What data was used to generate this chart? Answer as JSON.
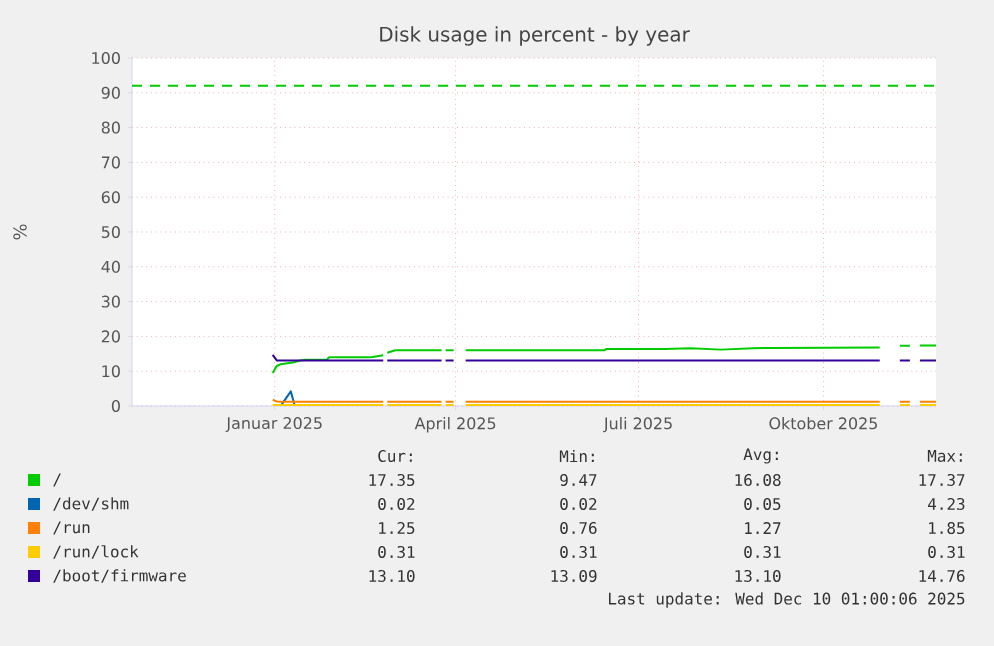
{
  "chart_data": {
    "type": "line",
    "title": "Disk usage in percent - by year",
    "ylabel": "%",
    "x": [
      "2024-12-31",
      "2025-01-02",
      "2025-01-04",
      "2025-01-09",
      "2025-01-11",
      "2025-01-13",
      "2025-01-16",
      "2025-01-27",
      "2025-01-28",
      "2025-02-18",
      "2025-02-24",
      "2025-02-25",
      "2025-02-26",
      "2025-03-02",
      "2025-03-25",
      "2025-03-26",
      "2025-03-27",
      "2025-03-31",
      "2025-04-03",
      "2025-04-06",
      "2025-06-14",
      "2025-06-15",
      "2025-07-14",
      "2025-07-27",
      "2025-08-11",
      "2025-08-27",
      "2025-09-06",
      "2025-10-29",
      "2025-11-03",
      "2025-11-08",
      "2025-11-13",
      "2025-11-15",
      "2025-11-18",
      "2025-11-26"
    ],
    "series": [
      {
        "name": "/",
        "color": "#00cc00",
        "values": [
          9.5,
          11.5,
          12.0,
          12.4,
          12.6,
          13.0,
          13.3,
          13.3,
          14.0,
          14.0,
          14.6,
          null,
          15.3,
          16.0,
          16.0,
          null,
          16.0,
          16.0,
          null,
          16.0,
          16.0,
          16.4,
          16.4,
          16.6,
          16.2,
          16.6,
          16.7,
          16.8,
          null,
          17.3,
          17.3,
          null,
          17.35,
          17.35
        ]
      },
      {
        "name": "/dev/shm",
        "color": "#0066b3",
        "values": [
          null,
          null,
          0.02,
          4.2,
          0.02,
          null,
          null,
          null,
          null,
          null,
          null,
          null,
          null,
          null,
          null,
          null,
          null,
          null,
          null,
          null,
          null,
          null,
          null,
          null,
          null,
          null,
          null,
          null,
          null,
          null,
          null,
          null,
          null,
          null
        ]
      },
      {
        "name": "/run",
        "color": "#ff8000",
        "values": [
          1.8,
          1.3,
          1.25,
          1.25,
          1.25,
          1.25,
          1.25,
          1.25,
          1.25,
          1.25,
          1.25,
          null,
          1.25,
          1.25,
          1.25,
          null,
          1.25,
          1.25,
          null,
          1.25,
          1.25,
          1.25,
          1.25,
          1.25,
          1.25,
          1.25,
          1.25,
          1.25,
          null,
          1.25,
          1.25,
          null,
          1.25,
          1.25
        ]
      },
      {
        "name": "/run/lock",
        "color": "#ffcc00",
        "values": [
          0.31,
          0.31,
          0.31,
          0.31,
          0.31,
          0.31,
          0.31,
          0.31,
          0.31,
          0.31,
          0.31,
          null,
          0.31,
          0.31,
          0.31,
          null,
          0.31,
          0.31,
          null,
          0.31,
          0.31,
          0.31,
          0.31,
          0.31,
          0.31,
          0.31,
          0.31,
          0.31,
          null,
          0.31,
          0.31,
          null,
          0.31,
          0.31
        ]
      },
      {
        "name": "/boot/firmware",
        "color": "#330099",
        "values": [
          14.7,
          13.1,
          13.1,
          13.1,
          13.1,
          13.1,
          13.1,
          13.1,
          13.1,
          13.1,
          13.1,
          null,
          13.1,
          13.1,
          13.1,
          null,
          13.1,
          13.1,
          null,
          13.1,
          13.1,
          13.1,
          13.1,
          13.1,
          13.1,
          13.1,
          13.1,
          13.1,
          null,
          13.1,
          13.1,
          null,
          13.1,
          13.1
        ]
      }
    ],
    "xlim": [
      "2024-10-22",
      "2025-11-26"
    ],
    "xticks": [
      {
        "value": "2025-01-01",
        "label": "Januar 2025"
      },
      {
        "value": "2025-04-01",
        "label": "April 2025"
      },
      {
        "value": "2025-07-01",
        "label": "Juli 2025"
      },
      {
        "value": "2025-10-01",
        "label": "Oktober 2025"
      }
    ],
    "ylim": [
      0,
      100
    ],
    "yticks": [
      0,
      10,
      20,
      30,
      40,
      50,
      60,
      70,
      80,
      90,
      100
    ],
    "grid": true,
    "legend": "bottom",
    "ref_lines": [
      {
        "axis": "y",
        "value": 92,
        "color": "#00cc00",
        "line_style": "dashed"
      }
    ],
    "annotations": [
      "Cur:",
      "Min:",
      "Avg:",
      "Max:",
      "17.35",
      "9.47",
      "16.08",
      "17.37",
      "0.02",
      "0.02",
      "0.05",
      "4.23",
      "1.25",
      "0.76",
      "1.27",
      "1.85",
      "0.31",
      "0.31",
      "0.31",
      "0.31",
      "13.10",
      "13.09",
      "13.10",
      "14.76",
      "Last update: Wed Dec 10 01:00:06 2025"
    ]
  }
}
